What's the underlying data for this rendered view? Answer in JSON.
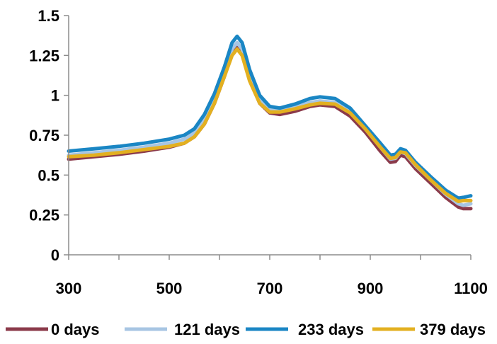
{
  "chart_data": {
    "type": "line",
    "title": "",
    "xlabel": "",
    "ylabel": "",
    "xlim": [
      300,
      1100
    ],
    "ylim": [
      0,
      1.5
    ],
    "x_ticks": [
      "300",
      "500",
      "700",
      "900",
      "1100"
    ],
    "y_ticks": [
      "0",
      "0.25",
      "0.5",
      "0.75",
      "1",
      "1.25",
      "1.5"
    ],
    "grid": false,
    "legend_position": "bottom",
    "series": [
      {
        "name": "0 days",
        "color": "#8b3a4a",
        "points": [
          [
            300,
            0.6
          ],
          [
            350,
            0.615
          ],
          [
            400,
            0.63
          ],
          [
            450,
            0.65
          ],
          [
            500,
            0.675
          ],
          [
            530,
            0.7
          ],
          [
            550,
            0.74
          ],
          [
            570,
            0.82
          ],
          [
            590,
            0.95
          ],
          [
            610,
            1.12
          ],
          [
            625,
            1.26
          ],
          [
            635,
            1.3
          ],
          [
            645,
            1.26
          ],
          [
            660,
            1.1
          ],
          [
            680,
            0.95
          ],
          [
            700,
            0.89
          ],
          [
            720,
            0.88
          ],
          [
            750,
            0.9
          ],
          [
            780,
            0.93
          ],
          [
            800,
            0.94
          ],
          [
            830,
            0.93
          ],
          [
            860,
            0.87
          ],
          [
            890,
            0.77
          ],
          [
            920,
            0.65
          ],
          [
            940,
            0.58
          ],
          [
            950,
            0.585
          ],
          [
            960,
            0.625
          ],
          [
            970,
            0.615
          ],
          [
            990,
            0.54
          ],
          [
            1020,
            0.45
          ],
          [
            1050,
            0.36
          ],
          [
            1075,
            0.3
          ],
          [
            1085,
            0.29
          ],
          [
            1100,
            0.29
          ]
        ]
      },
      {
        "name": "121 days",
        "color": "#a7c5e3",
        "points": [
          [
            300,
            0.625
          ],
          [
            350,
            0.64
          ],
          [
            400,
            0.655
          ],
          [
            450,
            0.675
          ],
          [
            500,
            0.7
          ],
          [
            530,
            0.725
          ],
          [
            550,
            0.765
          ],
          [
            570,
            0.85
          ],
          [
            590,
            0.98
          ],
          [
            610,
            1.15
          ],
          [
            625,
            1.29
          ],
          [
            635,
            1.33
          ],
          [
            645,
            1.29
          ],
          [
            660,
            1.13
          ],
          [
            680,
            0.97
          ],
          [
            700,
            0.91
          ],
          [
            720,
            0.905
          ],
          [
            750,
            0.925
          ],
          [
            780,
            0.955
          ],
          [
            800,
            0.965
          ],
          [
            830,
            0.955
          ],
          [
            860,
            0.895
          ],
          [
            890,
            0.79
          ],
          [
            920,
            0.675
          ],
          [
            940,
            0.6
          ],
          [
            950,
            0.605
          ],
          [
            960,
            0.645
          ],
          [
            970,
            0.635
          ],
          [
            990,
            0.56
          ],
          [
            1020,
            0.47
          ],
          [
            1050,
            0.38
          ],
          [
            1075,
            0.32
          ],
          [
            1085,
            0.31
          ],
          [
            1100,
            0.32
          ]
        ]
      },
      {
        "name": "233 days",
        "color": "#1a86c4",
        "points": [
          [
            300,
            0.65
          ],
          [
            350,
            0.665
          ],
          [
            400,
            0.68
          ],
          [
            450,
            0.7
          ],
          [
            500,
            0.725
          ],
          [
            530,
            0.75
          ],
          [
            550,
            0.79
          ],
          [
            570,
            0.88
          ],
          [
            590,
            1.01
          ],
          [
            610,
            1.18
          ],
          [
            625,
            1.33
          ],
          [
            635,
            1.37
          ],
          [
            645,
            1.33
          ],
          [
            660,
            1.16
          ],
          [
            680,
            1.0
          ],
          [
            700,
            0.93
          ],
          [
            720,
            0.92
          ],
          [
            750,
            0.945
          ],
          [
            780,
            0.98
          ],
          [
            800,
            0.99
          ],
          [
            830,
            0.98
          ],
          [
            860,
            0.92
          ],
          [
            890,
            0.81
          ],
          [
            920,
            0.7
          ],
          [
            940,
            0.625
          ],
          [
            950,
            0.63
          ],
          [
            960,
            0.665
          ],
          [
            970,
            0.655
          ],
          [
            990,
            0.58
          ],
          [
            1020,
            0.49
          ],
          [
            1050,
            0.405
          ],
          [
            1075,
            0.355
          ],
          [
            1085,
            0.36
          ],
          [
            1100,
            0.37
          ]
        ]
      },
      {
        "name": "379 days",
        "color": "#e3b020",
        "points": [
          [
            300,
            0.615
          ],
          [
            350,
            0.625
          ],
          [
            400,
            0.64
          ],
          [
            450,
            0.66
          ],
          [
            500,
            0.68
          ],
          [
            530,
            0.7
          ],
          [
            550,
            0.74
          ],
          [
            570,
            0.82
          ],
          [
            590,
            0.95
          ],
          [
            610,
            1.12
          ],
          [
            625,
            1.25
          ],
          [
            635,
            1.29
          ],
          [
            645,
            1.25
          ],
          [
            660,
            1.09
          ],
          [
            680,
            0.95
          ],
          [
            700,
            0.895
          ],
          [
            720,
            0.895
          ],
          [
            750,
            0.915
          ],
          [
            780,
            0.94
          ],
          [
            800,
            0.95
          ],
          [
            830,
            0.945
          ],
          [
            860,
            0.89
          ],
          [
            890,
            0.79
          ],
          [
            920,
            0.675
          ],
          [
            940,
            0.605
          ],
          [
            950,
            0.61
          ],
          [
            960,
            0.645
          ],
          [
            970,
            0.64
          ],
          [
            990,
            0.565
          ],
          [
            1020,
            0.47
          ],
          [
            1050,
            0.385
          ],
          [
            1075,
            0.335
          ],
          [
            1085,
            0.34
          ],
          [
            1100,
            0.34
          ]
        ]
      }
    ]
  }
}
